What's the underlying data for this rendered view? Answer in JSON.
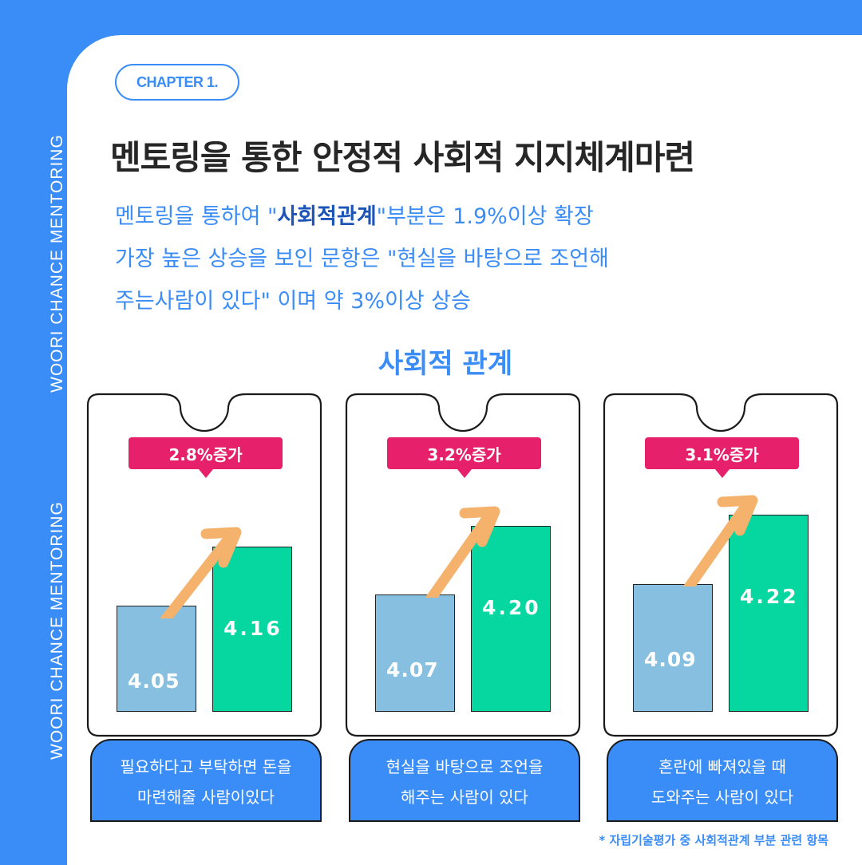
{
  "side_text": [
    "WOORI CHANCE MENTORING",
    "WOORI CHANCE MENTORING"
  ],
  "chapter": "CHAPTER 1.",
  "title": "멘토링을 통한 안정적 사회적 지지체계마련",
  "subtitle": {
    "line1_pre": "멘토링을 통하여 \"",
    "line1_bold": "사회적관계",
    "line1_post": "\"부분은 1.9%이상 확장",
    "line2": "가장 높은 상승을 보인 문항은 \"현실을 바탕으로 조언해",
    "line3": "주는사람이 있다\" 이며 약 3%이상 상승"
  },
  "footnote": "* 자립기술평가 중 사회적관계 부분 관련 항목",
  "colors": {
    "background": "#3a8cf7",
    "badge": "#e6206a",
    "before": "#86bfe0",
    "after": "#06d6a0",
    "arrow": "#f4b26d"
  },
  "chart_data": {
    "type": "bar",
    "title": "사회적 관계",
    "categories": [
      "필요하다고 부탁하면 돈을 마련해줄 사람이있다",
      "현실을 바탕으로 조언을 해주는 사람이 있다",
      "혼란에 빠져있을 때 도와주는 사람이 있다"
    ],
    "category_lines": [
      [
        "필요하다고 부탁하면 돈을",
        "마련해줄 사람이있다"
      ],
      [
        "현실을 바탕으로 조언을",
        "해주는 사람이 있다"
      ],
      [
        "혼란에 빠져있을 때",
        "도와주는 사람이 있다"
      ]
    ],
    "series": [
      {
        "values": [
          4.05,
          4.07,
          4.09
        ],
        "labels": [
          "4.05",
          "4.07",
          "4.09"
        ]
      },
      {
        "values": [
          4.16,
          4.2,
          4.22
        ],
        "labels": [
          "4.16",
          "4.20",
          "4.22"
        ]
      }
    ],
    "annotations": [
      "2.8%증가",
      "3.2%증가",
      "3.1%증가"
    ],
    "grid": false
  }
}
